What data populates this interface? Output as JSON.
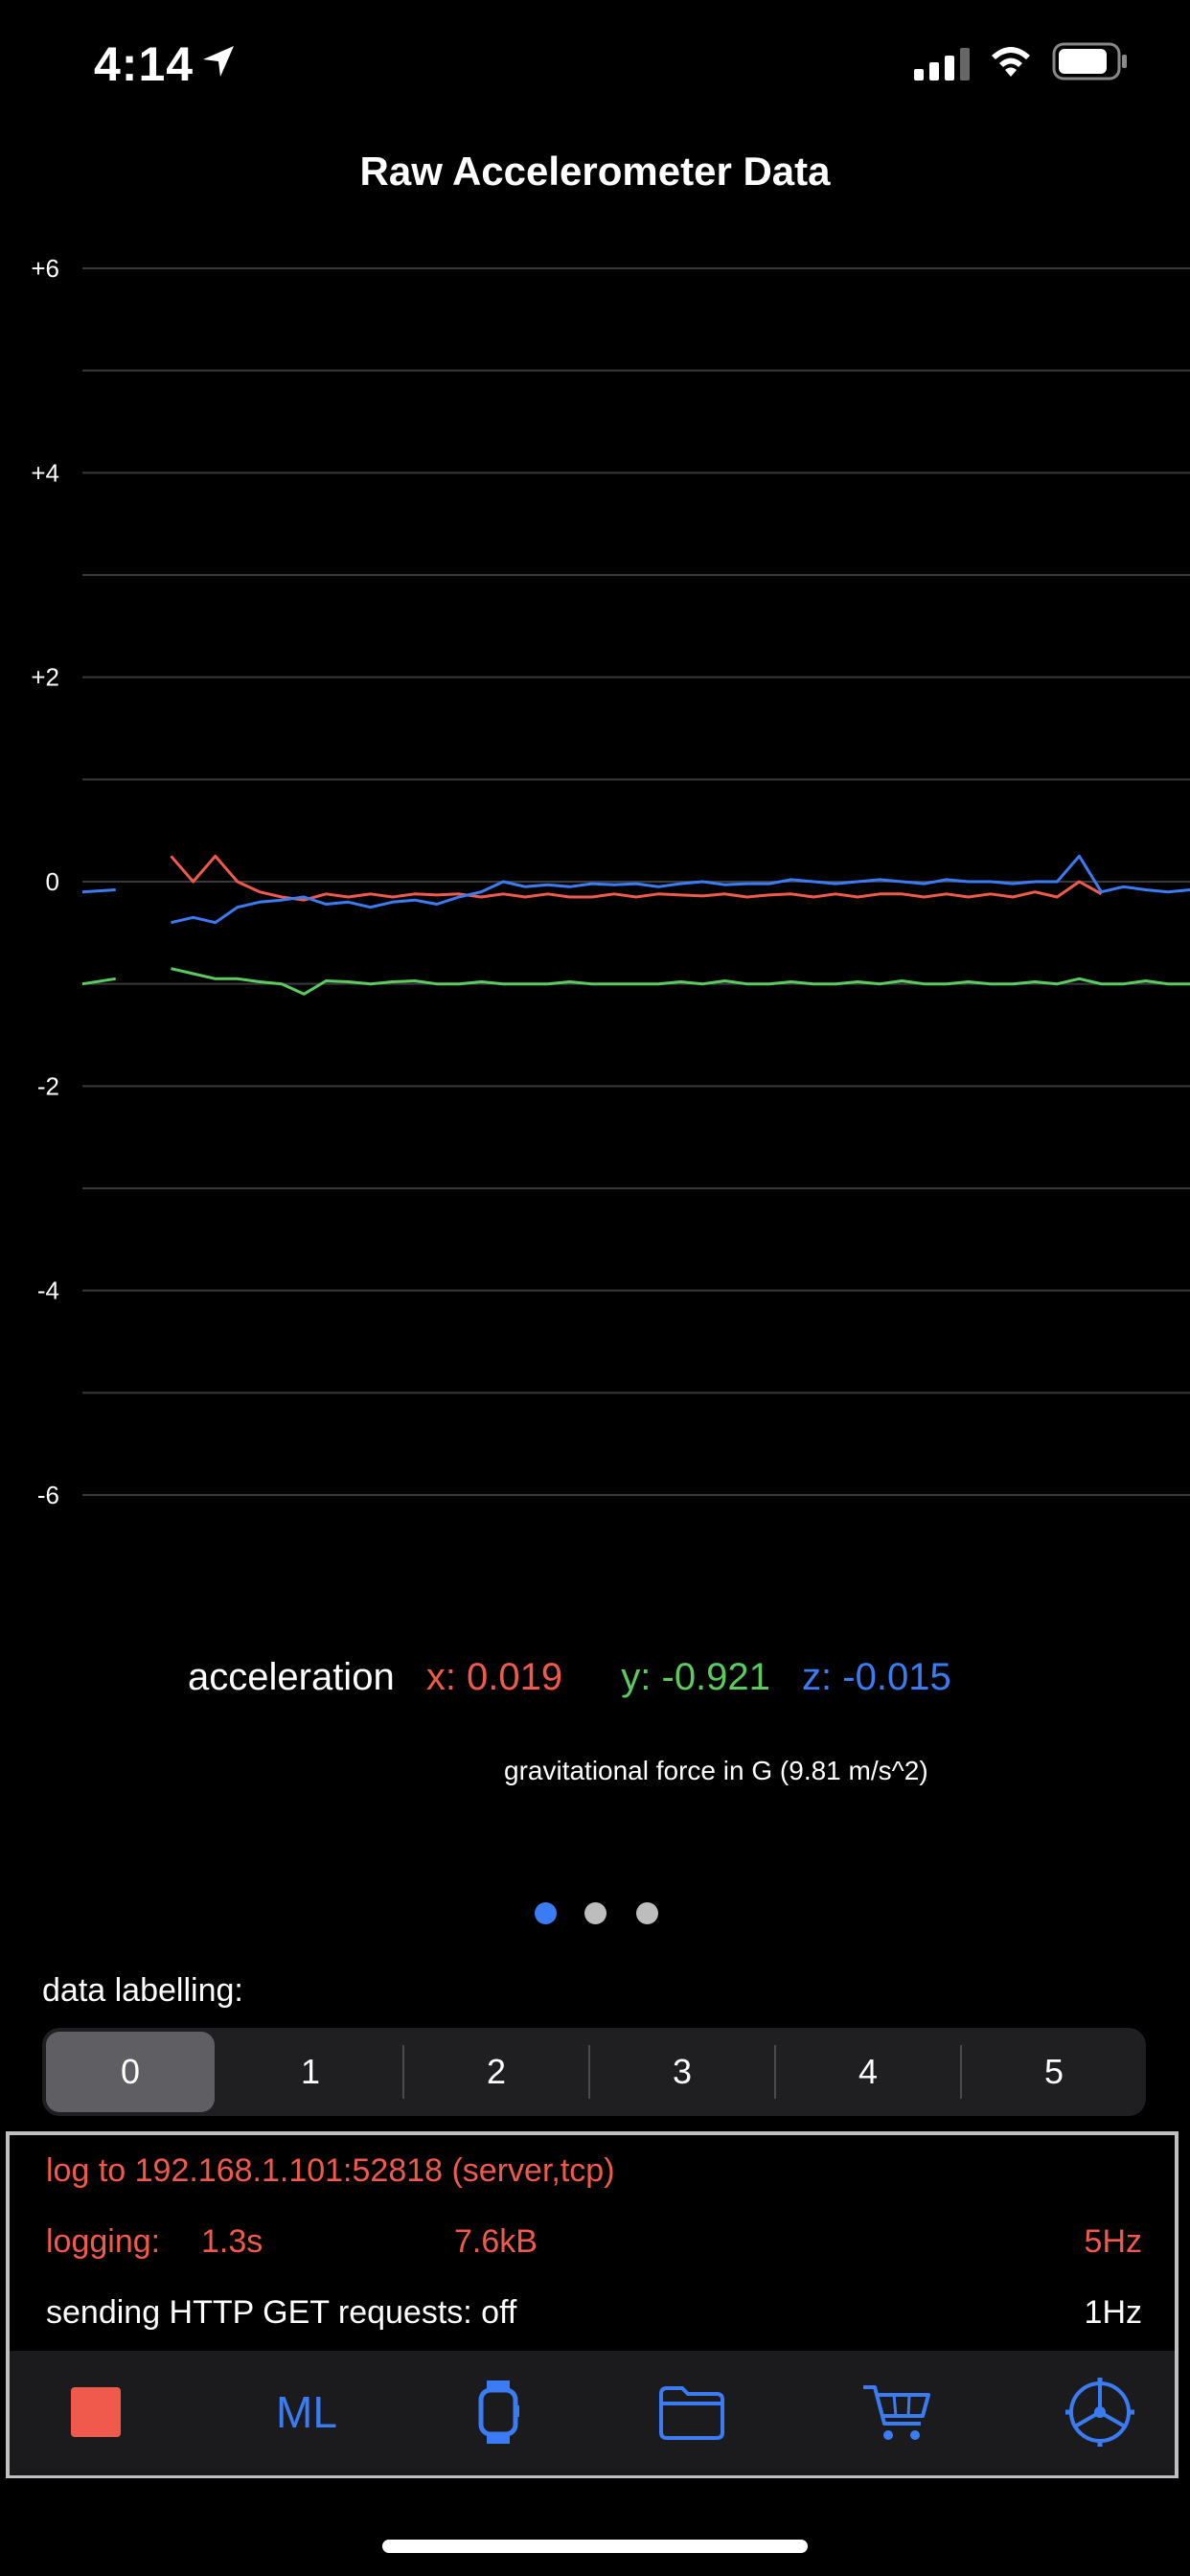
{
  "status": {
    "time": "4:14"
  },
  "title": "Raw Accelerometer Data",
  "colors": {
    "x": "#ef5a4d",
    "y": "#5ccb5f",
    "z": "#3b7cf5",
    "accent": "#3b7cf5"
  },
  "chart_data": {
    "type": "line",
    "ylim": [
      -6,
      6
    ],
    "grid": true,
    "ytick_labels": [
      "+6",
      "+4",
      "+2",
      "0",
      "-2",
      "-4",
      "-6"
    ],
    "yticks": [
      6,
      4,
      2,
      0,
      -2,
      -4,
      -6
    ],
    "x": [
      0,
      3,
      5,
      8,
      10,
      12,
      14,
      16,
      18,
      20,
      22,
      24,
      26,
      28,
      30,
      32,
      34,
      36,
      38,
      40,
      42,
      44,
      46,
      48,
      50,
      52,
      54,
      56,
      58,
      60,
      62,
      64,
      66,
      68,
      70,
      72,
      74,
      76,
      78,
      80,
      82,
      84,
      86,
      88,
      90,
      92,
      94,
      96,
      98,
      100
    ],
    "series": [
      {
        "name": "x",
        "values": [
          null,
          null,
          null,
          0.25,
          0.0,
          0.25,
          0.0,
          -0.1,
          -0.15,
          -0.18,
          -0.12,
          -0.15,
          -0.12,
          -0.15,
          -0.12,
          -0.13,
          -0.12,
          -0.15,
          -0.12,
          -0.15,
          -0.12,
          -0.15,
          -0.15,
          -0.12,
          -0.15,
          -0.12,
          -0.13,
          -0.14,
          -0.12,
          -0.15,
          -0.13,
          -0.12,
          -0.15,
          -0.12,
          -0.15,
          -0.12,
          -0.12,
          -0.15,
          -0.12,
          -0.15,
          -0.12,
          -0.15,
          -0.1,
          -0.15,
          0.0,
          -0.12,
          null,
          null,
          null,
          null
        ]
      },
      {
        "name": "y",
        "values": [
          -1.0,
          -0.95,
          null,
          -0.85,
          -0.9,
          -0.95,
          -0.95,
          -0.98,
          -1.0,
          -1.1,
          -0.97,
          -0.98,
          -1.0,
          -0.98,
          -0.97,
          -1.0,
          -1.0,
          -0.98,
          -1.0,
          -1.0,
          -1.0,
          -0.98,
          -1.0,
          -1.0,
          -1.0,
          -1.0,
          -0.98,
          -1.0,
          -0.97,
          -1.0,
          -1.0,
          -0.98,
          -1.0,
          -1.0,
          -0.98,
          -1.0,
          -0.97,
          -1.0,
          -1.0,
          -0.98,
          -1.0,
          -1.0,
          -0.98,
          -1.0,
          -0.95,
          -1.0,
          -1.0,
          -0.97,
          -1.0,
          -1.0
        ]
      },
      {
        "name": "z",
        "values": [
          -0.1,
          -0.08,
          null,
          -0.4,
          -0.35,
          -0.4,
          -0.25,
          -0.2,
          -0.18,
          -0.15,
          -0.22,
          -0.2,
          -0.25,
          -0.2,
          -0.18,
          -0.22,
          -0.15,
          -0.1,
          0.0,
          -0.05,
          -0.03,
          -0.05,
          -0.02,
          -0.03,
          -0.02,
          -0.05,
          -0.02,
          0.0,
          -0.03,
          -0.02,
          -0.02,
          0.02,
          0.0,
          -0.02,
          0.0,
          0.02,
          0.0,
          -0.02,
          0.02,
          0.0,
          0.0,
          -0.02,
          0.0,
          0.0,
          0.25,
          -0.1,
          -0.05,
          -0.08,
          -0.1,
          -0.08
        ]
      }
    ]
  },
  "readout": {
    "label": "acceleration",
    "x": "x: 0.019",
    "y": "y: -0.921",
    "z": "z: -0.015",
    "caption": "gravitational force in G (9.81 m/s^2)"
  },
  "pager": {
    "count": 3,
    "active": 0
  },
  "labelling": {
    "heading": "data labelling:",
    "options": [
      "0",
      "1",
      "2",
      "3",
      "4",
      "5"
    ],
    "selected": 0
  },
  "log": {
    "target": "log to 192.168.1.101:52818 (server,tcp)",
    "logging_label": "logging:",
    "duration": "1.3s",
    "size": "7.6kB",
    "rate": "5Hz",
    "http": "sending HTTP GET requests: off",
    "http_rate": "1Hz"
  },
  "tabbar": {
    "items": [
      {
        "icon": "stop-icon"
      },
      {
        "label": "ML"
      },
      {
        "icon": "watch-icon"
      },
      {
        "icon": "folder-icon"
      },
      {
        "icon": "cart-icon"
      },
      {
        "icon": "settings-wheel-icon"
      }
    ]
  }
}
